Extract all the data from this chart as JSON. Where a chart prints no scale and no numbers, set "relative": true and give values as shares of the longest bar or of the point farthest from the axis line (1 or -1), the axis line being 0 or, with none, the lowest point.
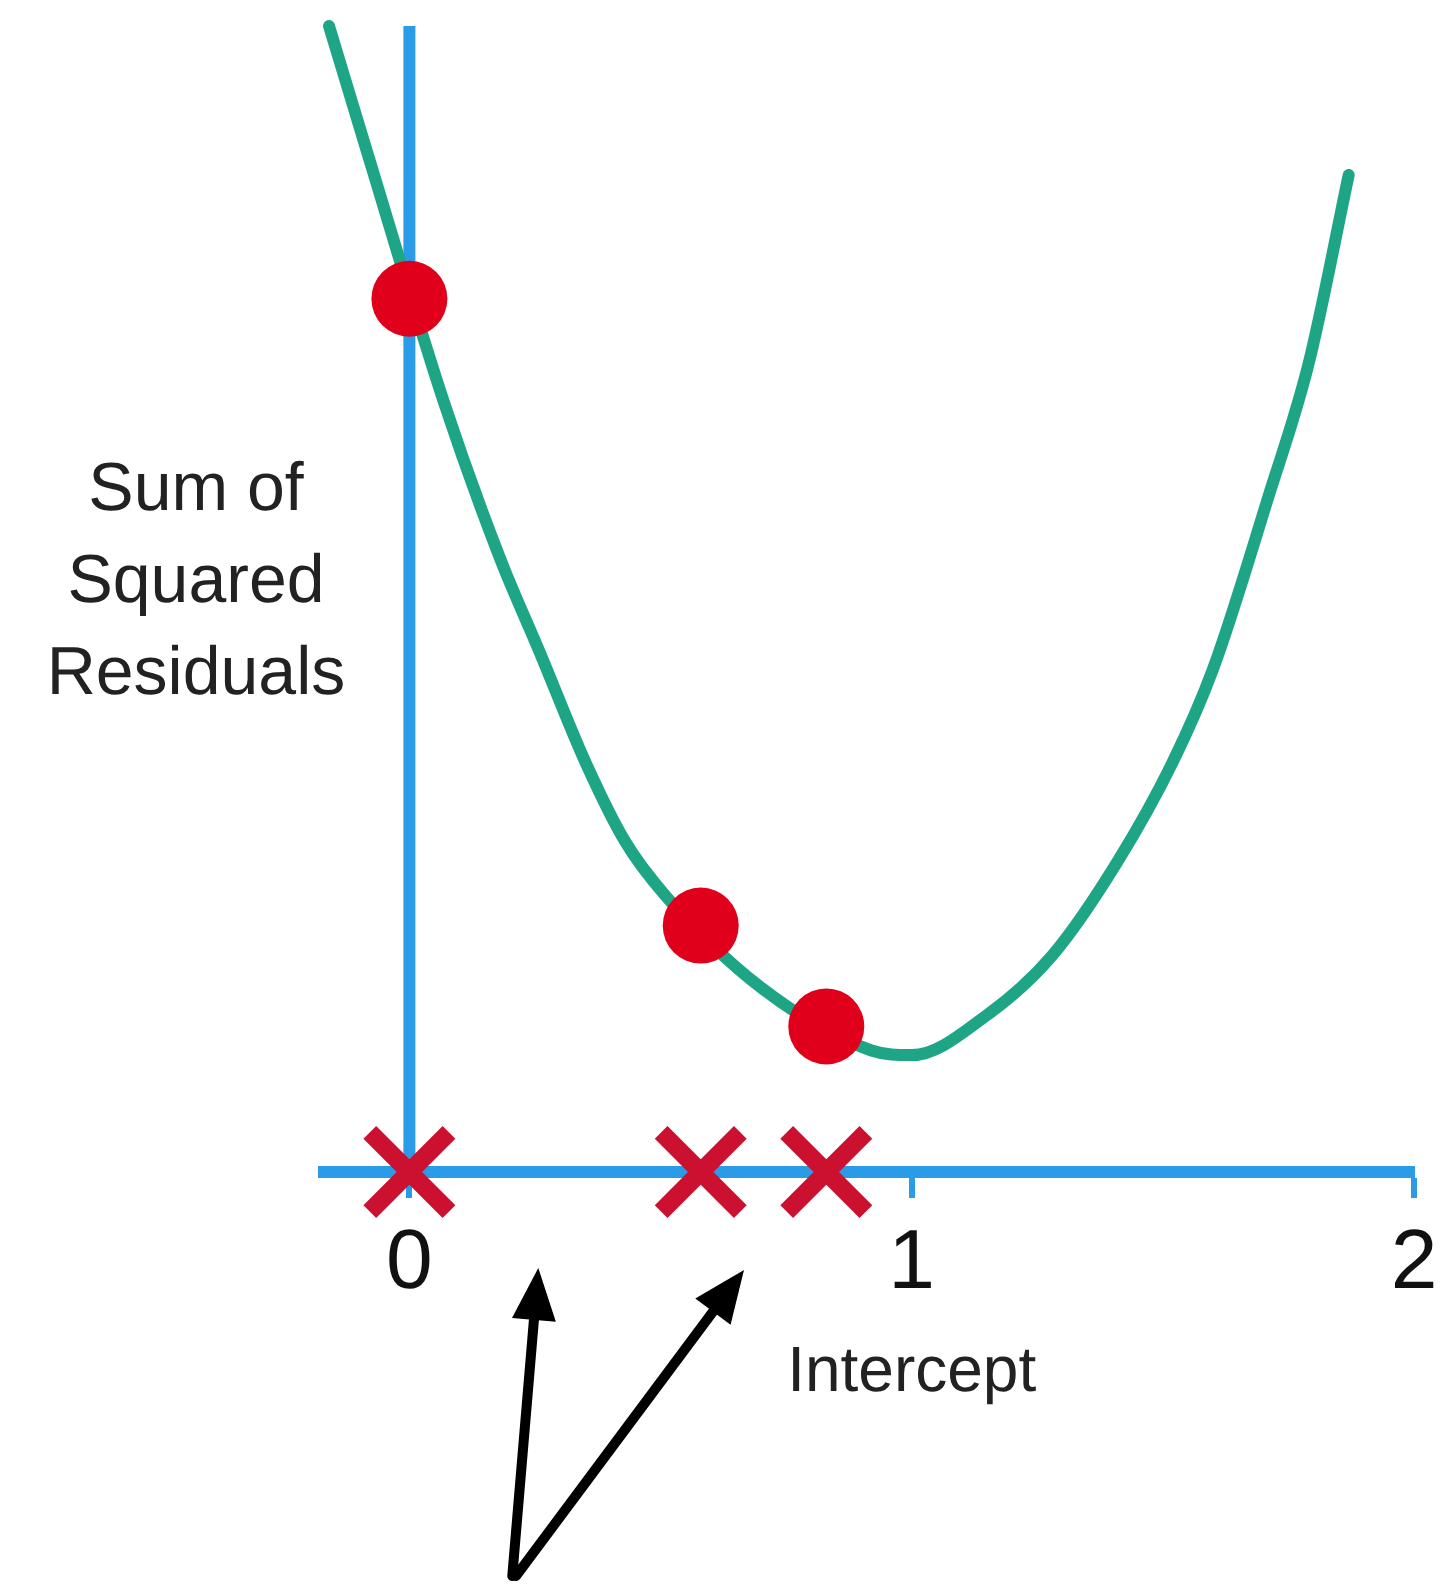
{
  "chart_data": {
    "type": "line",
    "xlabel": "Intercept",
    "ylabel": "Sum of Squared Residuals",
    "relative": true,
    "xlim": [
      -0.17,
      2
    ],
    "xticks": [
      0,
      1,
      2
    ],
    "ref_lines": [
      {
        "axis": "x",
        "value": 0,
        "color": "#2a9be6"
      }
    ],
    "series": [
      {
        "color": "#1ea586",
        "marker": "none",
        "x": [
          -0.16,
          -0.08,
          0.07,
          0.18,
          0.26,
          0.35,
          0.43,
          0.51,
          0.7,
          0.92,
          1,
          1.15,
          1.28,
          1.41,
          1.52,
          1.6,
          1.71,
          1.79,
          1.87
        ],
        "values": [
          1,
          0.884,
          0.67,
          0.536,
          0.453,
          0.358,
          0.288,
          0.241,
          0.161,
          0.106,
          0.102,
          0.137,
          0.189,
          0.271,
          0.358,
          0.439,
          0.589,
          0.705,
          0.87
        ]
      },
      {
        "type": "scatter",
        "color": "#e0001b",
        "marker": "circle",
        "x": [
          0,
          0.58,
          0.83
        ],
        "values": [
          0.762,
          0.215,
          0.127
        ]
      },
      {
        "type": "scatter",
        "color": "#cc1130",
        "marker": "cross",
        "x": [
          0,
          0.58,
          0.83
        ],
        "values": [
          0,
          0,
          0
        ]
      }
    ]
  }
}
